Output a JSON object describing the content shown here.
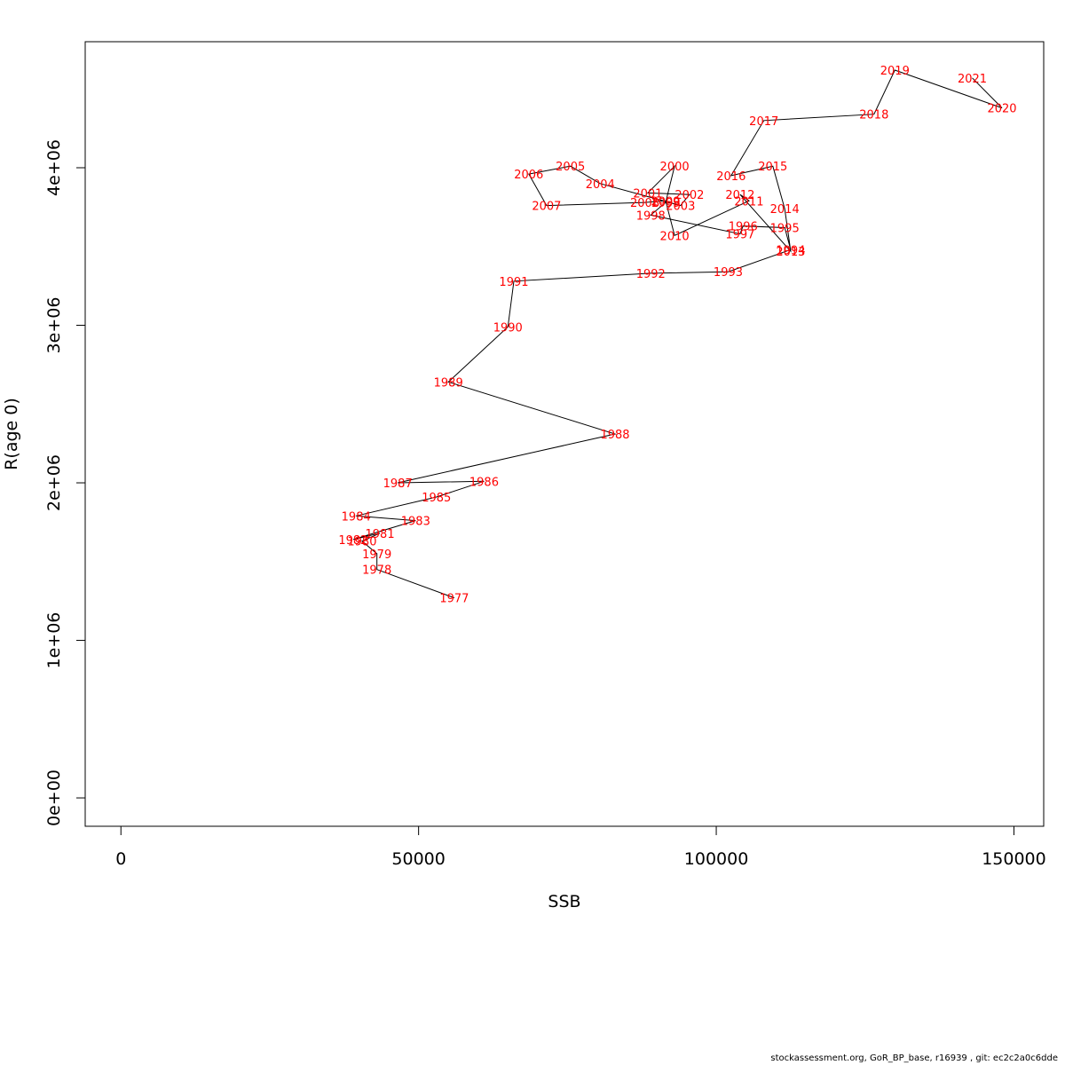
{
  "chart_data": {
    "type": "line",
    "xlabel": "SSB",
    "ylabel": "R(age 0)",
    "xlim": [
      -6000,
      155000
    ],
    "ylim": [
      -180000,
      4800000
    ],
    "xticks": [
      0,
      50000,
      100000,
      150000
    ],
    "xtick_labels": [
      "0",
      "50000",
      "100000",
      "150000"
    ],
    "yticks": [
      0,
      1000000,
      2000000,
      3000000,
      4000000
    ],
    "ytick_labels": [
      "0e+00",
      "1e+06",
      "2e+06",
      "3e+06",
      "4e+06"
    ],
    "grid": false,
    "label_color": "#ff0000",
    "line_color": "#000000",
    "points": [
      {
        "label": "1977",
        "x": 56000,
        "y": 1270000
      },
      {
        "label": "1978",
        "x": 43000,
        "y": 1450000
      },
      {
        "label": "1979",
        "x": 43000,
        "y": 1550000
      },
      {
        "label": "1980",
        "x": 40500,
        "y": 1630000
      },
      {
        "label": "1981",
        "x": 43500,
        "y": 1680000
      },
      {
        "label": "1982",
        "x": 39000,
        "y": 1640000
      },
      {
        "label": "1983",
        "x": 49500,
        "y": 1760000
      },
      {
        "label": "1984",
        "x": 39500,
        "y": 1790000
      },
      {
        "label": "1985",
        "x": 53000,
        "y": 1910000
      },
      {
        "label": "1986",
        "x": 61000,
        "y": 2010000
      },
      {
        "label": "1987",
        "x": 46500,
        "y": 2000000
      },
      {
        "label": "1988",
        "x": 83000,
        "y": 2310000
      },
      {
        "label": "1989",
        "x": 55000,
        "y": 2640000
      },
      {
        "label": "1990",
        "x": 65000,
        "y": 2990000
      },
      {
        "label": "1991",
        "x": 66000,
        "y": 3280000
      },
      {
        "label": "1992",
        "x": 89000,
        "y": 3330000
      },
      {
        "label": "1993",
        "x": 102000,
        "y": 3340000
      },
      {
        "label": "1994",
        "x": 112500,
        "y": 3480000
      },
      {
        "label": "1995",
        "x": 111500,
        "y": 3620000
      },
      {
        "label": "1996",
        "x": 104500,
        "y": 3630000
      },
      {
        "label": "1997",
        "x": 104000,
        "y": 3580000
      },
      {
        "label": "1998",
        "x": 89000,
        "y": 3700000
      },
      {
        "label": "1999",
        "x": 91500,
        "y": 3780000
      },
      {
        "label": "2000",
        "x": 93000,
        "y": 4010000
      },
      {
        "label": "2001",
        "x": 88500,
        "y": 3840000
      },
      {
        "label": "2002",
        "x": 95500,
        "y": 3830000
      },
      {
        "label": "2003",
        "x": 94000,
        "y": 3760000
      },
      {
        "label": "2004",
        "x": 80500,
        "y": 3900000
      },
      {
        "label": "2005",
        "x": 75500,
        "y": 4010000
      },
      {
        "label": "2006",
        "x": 68500,
        "y": 3960000
      },
      {
        "label": "2007",
        "x": 71500,
        "y": 3760000
      },
      {
        "label": "2008",
        "x": 88000,
        "y": 3780000
      },
      {
        "label": "2009",
        "x": 91500,
        "y": 3790000
      },
      {
        "label": "2010",
        "x": 93000,
        "y": 3570000
      },
      {
        "label": "2011",
        "x": 105500,
        "y": 3790000
      },
      {
        "label": "2012",
        "x": 104000,
        "y": 3830000
      },
      {
        "label": "2013",
        "x": 112500,
        "y": 3470000
      },
      {
        "label": "2014",
        "x": 111500,
        "y": 3740000
      },
      {
        "label": "2015",
        "x": 109500,
        "y": 4010000
      },
      {
        "label": "2016",
        "x": 102500,
        "y": 3950000
      },
      {
        "label": "2017",
        "x": 108000,
        "y": 4300000
      },
      {
        "label": "2018",
        "x": 126500,
        "y": 4340000
      },
      {
        "label": "2019",
        "x": 130000,
        "y": 4620000
      },
      {
        "label": "2020",
        "x": 148000,
        "y": 4380000
      },
      {
        "label": "2021",
        "x": 143000,
        "y": 4570000
      }
    ]
  },
  "footer": {
    "text": "stockassessment.org, GoR_BP_base, r16939 , git: ec2c2a0c6dde"
  }
}
